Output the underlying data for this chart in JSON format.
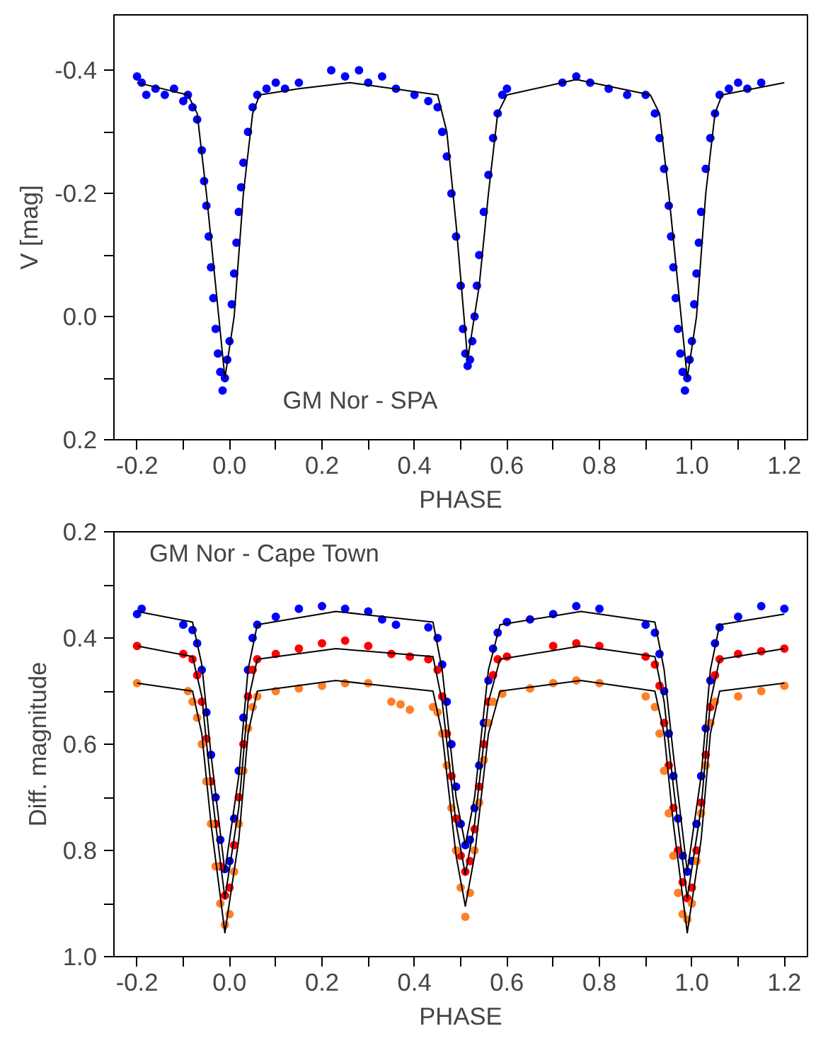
{
  "chart_data": [
    {
      "type": "scatter",
      "xlabel": "PHASE",
      "ylabel": "V [mag]",
      "annotations": [
        "GM Nor - SPA"
      ],
      "xlim": [
        -0.25,
        1.25
      ],
      "ylim": [
        0.2,
        -0.49
      ],
      "xticks": [
        {
          "value": -0.2,
          "label": "-0.2"
        },
        {
          "value": -0.1,
          "label": null
        },
        {
          "value": 0,
          "label": "0.0"
        },
        {
          "value": 0.1,
          "label": null
        },
        {
          "value": 0.2,
          "label": "0.2"
        },
        {
          "value": 0.3,
          "label": null
        },
        {
          "value": 0.4,
          "label": "0.4"
        },
        {
          "value": 0.5,
          "label": null
        },
        {
          "value": 0.6,
          "label": "0.6"
        },
        {
          "value": 0.7,
          "label": null
        },
        {
          "value": 0.8,
          "label": "0.8"
        },
        {
          "value": 0.9,
          "label": null
        },
        {
          "value": 1,
          "label": "1.0"
        },
        {
          "value": 1.1,
          "label": null
        },
        {
          "value": 1.2,
          "label": "1.2"
        }
      ],
      "yticks": [
        {
          "value": -0.4,
          "label": "-0.4"
        },
        {
          "value": -0.3,
          "label": null
        },
        {
          "value": -0.2,
          "label": "-0.2"
        },
        {
          "value": -0.1,
          "label": null
        },
        {
          "value": 0,
          "label": "0.0"
        },
        {
          "value": 0.1,
          "label": null
        },
        {
          "value": 0.2,
          "label": "0.2"
        }
      ],
      "grid": false,
      "line_style": "solid",
      "series": [
        {
          "marker": "circle",
          "color": "#0000ff",
          "x": [
            -0.2,
            -0.19,
            -0.18,
            -0.16,
            -0.14,
            -0.12,
            -0.1,
            -0.09,
            -0.08,
            -0.07,
            -0.06,
            -0.055,
            -0.05,
            -0.045,
            -0.04,
            -0.035,
            -0.03,
            -0.025,
            -0.02,
            -0.015,
            -0.01,
            -0.005,
            0.0,
            0.005,
            0.01,
            0.015,
            0.02,
            0.025,
            0.03,
            0.04,
            0.05,
            0.06,
            0.08,
            0.1,
            0.12,
            0.15,
            0.22,
            0.25,
            0.28,
            0.3,
            0.33,
            0.36,
            0.4,
            0.43,
            0.45,
            0.46,
            0.47,
            0.48,
            0.49,
            0.5,
            0.505,
            0.51,
            0.515,
            0.52,
            0.525,
            0.53,
            0.535,
            0.54,
            0.55,
            0.56,
            0.57,
            0.58,
            0.59,
            0.6,
            0.72,
            0.75,
            0.78,
            0.82,
            0.86,
            0.9,
            0.92,
            0.93,
            0.94,
            0.95,
            0.955,
            0.96,
            0.965,
            0.97,
            0.975,
            0.98,
            0.985,
            0.99,
            0.995,
            1.0,
            1.005,
            1.01,
            1.015,
            1.02,
            1.03,
            1.04,
            1.05,
            1.06,
            1.08,
            1.1,
            1.12,
            1.15
          ],
          "values": [
            -0.39,
            -0.38,
            -0.36,
            -0.37,
            -0.36,
            -0.37,
            -0.35,
            -0.36,
            -0.34,
            -0.32,
            -0.27,
            -0.22,
            -0.18,
            -0.13,
            -0.08,
            -0.03,
            0.02,
            0.06,
            0.09,
            0.12,
            0.1,
            0.07,
            0.04,
            -0.02,
            -0.07,
            -0.12,
            -0.17,
            -0.21,
            -0.25,
            -0.3,
            -0.34,
            -0.36,
            -0.37,
            -0.38,
            -0.37,
            -0.38,
            -0.4,
            -0.39,
            -0.4,
            -0.38,
            -0.39,
            -0.37,
            -0.36,
            -0.35,
            -0.34,
            -0.3,
            -0.26,
            -0.2,
            -0.13,
            -0.05,
            0.02,
            0.06,
            0.08,
            0.07,
            0.04,
            0.0,
            -0.05,
            -0.1,
            -0.17,
            -0.23,
            -0.29,
            -0.33,
            -0.36,
            -0.37,
            -0.38,
            -0.39,
            -0.38,
            -0.37,
            -0.36,
            -0.36,
            -0.33,
            -0.29,
            -0.24,
            -0.18,
            -0.13,
            -0.08,
            -0.03,
            0.02,
            0.06,
            0.09,
            0.12,
            0.1,
            0.07,
            0.04,
            -0.02,
            -0.07,
            -0.12,
            -0.17,
            -0.24,
            -0.29,
            -0.33,
            -0.36,
            -0.37,
            -0.38,
            -0.37,
            -0.38
          ]
        },
        {
          "type": "line",
          "marker": "none",
          "color": "#000000",
          "x": [
            -0.2,
            -0.09,
            -0.07,
            -0.05,
            -0.03,
            -0.01,
            0.01,
            0.03,
            0.05,
            0.065,
            0.15,
            0.26,
            0.45,
            0.47,
            0.49,
            0.515,
            0.54,
            0.56,
            0.58,
            0.6,
            0.75,
            0.91,
            0.93,
            0.95,
            0.97,
            0.99,
            1.01,
            1.03,
            1.05,
            1.065,
            1.2
          ],
          "values": [
            -0.38,
            -0.36,
            -0.33,
            -0.2,
            -0.05,
            0.1,
            0.0,
            -0.2,
            -0.33,
            -0.36,
            -0.37,
            -0.38,
            -0.36,
            -0.3,
            -0.15,
            0.07,
            -0.05,
            -0.2,
            -0.33,
            -0.36,
            -0.385,
            -0.36,
            -0.33,
            -0.2,
            -0.05,
            0.1,
            0.0,
            -0.2,
            -0.33,
            -0.36,
            -0.38
          ]
        }
      ]
    },
    {
      "type": "scatter",
      "xlabel": "PHASE",
      "ylabel": "Diff. magnitude",
      "annotations": [
        "GM Nor - Cape Town"
      ],
      "xlim": [
        -0.25,
        1.25
      ],
      "ylim": [
        1.0,
        0.2
      ],
      "xticks": [
        {
          "value": -0.2,
          "label": "-0.2"
        },
        {
          "value": -0.1,
          "label": null
        },
        {
          "value": 0,
          "label": "0.0"
        },
        {
          "value": 0.1,
          "label": null
        },
        {
          "value": 0.2,
          "label": "0.2"
        },
        {
          "value": 0.3,
          "label": null
        },
        {
          "value": 0.4,
          "label": "0.4"
        },
        {
          "value": 0.5,
          "label": null
        },
        {
          "value": 0.6,
          "label": "0.6"
        },
        {
          "value": 0.7,
          "label": null
        },
        {
          "value": 0.8,
          "label": "0.8"
        },
        {
          "value": 0.9,
          "label": null
        },
        {
          "value": 1,
          "label": "1.0"
        },
        {
          "value": 1.1,
          "label": null
        },
        {
          "value": 1.2,
          "label": "1.2"
        }
      ],
      "yticks": [
        {
          "value": 0.2,
          "label": "0.2"
        },
        {
          "value": 0.3,
          "label": null
        },
        {
          "value": 0.4,
          "label": "0.4"
        },
        {
          "value": 0.5,
          "label": null
        },
        {
          "value": 0.6,
          "label": "0.6"
        },
        {
          "value": 0.7,
          "label": null
        },
        {
          "value": 0.8,
          "label": "0.8"
        },
        {
          "value": 0.9,
          "label": null
        },
        {
          "value": 1,
          "label": "1.0"
        }
      ],
      "grid": false,
      "line_style": "solid",
      "series": [
        {
          "marker": "circle",
          "color": "#0000ff",
          "x": [
            -0.2,
            -0.19,
            -0.1,
            -0.08,
            -0.07,
            -0.06,
            -0.05,
            -0.04,
            -0.03,
            -0.02,
            -0.01,
            0.0,
            0.01,
            0.02,
            0.03,
            0.04,
            0.05,
            0.06,
            0.1,
            0.15,
            0.2,
            0.25,
            0.3,
            0.33,
            0.36,
            0.43,
            0.45,
            0.46,
            0.47,
            0.48,
            0.49,
            0.5,
            0.51,
            0.52,
            0.53,
            0.54,
            0.55,
            0.56,
            0.57,
            0.58,
            0.6,
            0.65,
            0.7,
            0.75,
            0.8,
            0.9,
            0.92,
            0.93,
            0.94,
            0.95,
            0.96,
            0.97,
            0.98,
            0.99,
            1.0,
            1.01,
            1.02,
            1.03,
            1.04,
            1.05,
            1.06,
            1.1,
            1.15,
            1.2
          ],
          "values": [
            0.355,
            0.345,
            0.375,
            0.385,
            0.41,
            0.46,
            0.54,
            0.62,
            0.7,
            0.78,
            0.835,
            0.82,
            0.74,
            0.65,
            0.55,
            0.46,
            0.4,
            0.375,
            0.36,
            0.345,
            0.34,
            0.345,
            0.35,
            0.365,
            0.375,
            0.38,
            0.4,
            0.45,
            0.52,
            0.6,
            0.68,
            0.75,
            0.79,
            0.78,
            0.72,
            0.64,
            0.56,
            0.48,
            0.42,
            0.39,
            0.37,
            0.365,
            0.355,
            0.34,
            0.345,
            0.375,
            0.39,
            0.43,
            0.5,
            0.58,
            0.66,
            0.74,
            0.81,
            0.84,
            0.82,
            0.75,
            0.66,
            0.57,
            0.48,
            0.41,
            0.38,
            0.36,
            0.34,
            0.345
          ]
        },
        {
          "marker": "circle",
          "color": "#ff0000",
          "x": [
            -0.2,
            -0.1,
            -0.08,
            -0.07,
            -0.06,
            -0.05,
            -0.04,
            -0.03,
            -0.02,
            -0.01,
            0.0,
            0.01,
            0.02,
            0.03,
            0.04,
            0.05,
            0.06,
            0.1,
            0.15,
            0.2,
            0.25,
            0.3,
            0.35,
            0.39,
            0.43,
            0.45,
            0.46,
            0.47,
            0.48,
            0.49,
            0.5,
            0.51,
            0.52,
            0.53,
            0.54,
            0.55,
            0.56,
            0.57,
            0.58,
            0.6,
            0.7,
            0.75,
            0.8,
            0.9,
            0.92,
            0.93,
            0.94,
            0.95,
            0.96,
            0.97,
            0.98,
            0.99,
            1.0,
            1.01,
            1.02,
            1.03,
            1.04,
            1.05,
            1.06,
            1.1,
            1.15,
            1.2
          ],
          "values": [
            0.415,
            0.43,
            0.44,
            0.47,
            0.52,
            0.59,
            0.67,
            0.75,
            0.83,
            0.885,
            0.87,
            0.79,
            0.7,
            0.6,
            0.51,
            0.46,
            0.44,
            0.43,
            0.42,
            0.41,
            0.405,
            0.415,
            0.43,
            0.435,
            0.44,
            0.46,
            0.51,
            0.58,
            0.66,
            0.74,
            0.81,
            0.84,
            0.82,
            0.76,
            0.68,
            0.6,
            0.52,
            0.47,
            0.44,
            0.435,
            0.415,
            0.41,
            0.415,
            0.435,
            0.45,
            0.49,
            0.56,
            0.64,
            0.72,
            0.8,
            0.86,
            0.89,
            0.87,
            0.8,
            0.71,
            0.62,
            0.53,
            0.47,
            0.44,
            0.43,
            0.425,
            0.42
          ]
        },
        {
          "marker": "circle",
          "color": "#ff7f27",
          "x": [
            -0.2,
            -0.09,
            -0.08,
            -0.07,
            -0.06,
            -0.05,
            -0.04,
            -0.03,
            -0.02,
            -0.01,
            0.0,
            0.01,
            0.02,
            0.03,
            0.04,
            0.05,
            0.06,
            0.1,
            0.15,
            0.2,
            0.25,
            0.3,
            0.35,
            0.37,
            0.39,
            0.44,
            0.45,
            0.46,
            0.47,
            0.48,
            0.49,
            0.5,
            0.51,
            0.52,
            0.53,
            0.54,
            0.55,
            0.56,
            0.57,
            0.59,
            0.65,
            0.7,
            0.75,
            0.8,
            0.9,
            0.92,
            0.93,
            0.94,
            0.95,
            0.96,
            0.97,
            0.98,
            0.99,
            1.0,
            1.01,
            1.02,
            1.03,
            1.04,
            1.05,
            1.1,
            1.15,
            1.2
          ],
          "values": [
            0.485,
            0.5,
            0.52,
            0.55,
            0.6,
            0.67,
            0.75,
            0.83,
            0.9,
            0.94,
            0.92,
            0.84,
            0.75,
            0.65,
            0.57,
            0.53,
            0.51,
            0.5,
            0.495,
            0.49,
            0.485,
            0.485,
            0.52,
            0.525,
            0.535,
            0.53,
            0.54,
            0.58,
            0.64,
            0.72,
            0.8,
            0.87,
            0.925,
            0.88,
            0.8,
            0.71,
            0.63,
            0.56,
            0.52,
            0.505,
            0.495,
            0.485,
            0.48,
            0.485,
            0.51,
            0.53,
            0.58,
            0.65,
            0.73,
            0.81,
            0.88,
            0.92,
            0.93,
            0.9,
            0.82,
            0.73,
            0.64,
            0.56,
            0.52,
            0.51,
            0.5,
            0.49
          ]
        },
        {
          "type": "line",
          "color": "#000000",
          "x": [
            -0.2,
            -0.08,
            -0.06,
            -0.04,
            -0.01,
            0.02,
            0.04,
            0.06,
            0.23,
            0.44,
            0.46,
            0.49,
            0.51,
            0.53,
            0.56,
            0.585,
            0.76,
            0.92,
            0.94,
            0.96,
            0.99,
            1.02,
            1.04,
            1.06,
            1.2
          ],
          "marker": "none",
          "values": [
            0.35,
            0.37,
            0.45,
            0.62,
            0.84,
            0.66,
            0.46,
            0.375,
            0.35,
            0.37,
            0.46,
            0.7,
            0.79,
            0.7,
            0.46,
            0.375,
            0.35,
            0.37,
            0.46,
            0.62,
            0.84,
            0.66,
            0.46,
            0.375,
            0.355
          ]
        },
        {
          "type": "line",
          "color": "#000000",
          "x": [
            -0.2,
            -0.08,
            -0.06,
            -0.04,
            -0.01,
            0.02,
            0.04,
            0.06,
            0.23,
            0.44,
            0.46,
            0.49,
            0.51,
            0.53,
            0.56,
            0.585,
            0.76,
            0.92,
            0.94,
            0.96,
            0.99,
            1.02,
            1.04,
            1.06,
            1.2
          ],
          "marker": "none",
          "values": [
            0.415,
            0.435,
            0.51,
            0.68,
            0.89,
            0.72,
            0.52,
            0.44,
            0.42,
            0.435,
            0.52,
            0.75,
            0.845,
            0.75,
            0.52,
            0.44,
            0.415,
            0.435,
            0.52,
            0.68,
            0.89,
            0.72,
            0.52,
            0.44,
            0.42
          ]
        },
        {
          "type": "line",
          "color": "#000000",
          "x": [
            -0.2,
            -0.08,
            -0.06,
            -0.04,
            -0.01,
            0.02,
            0.04,
            0.06,
            0.23,
            0.44,
            0.46,
            0.49,
            0.51,
            0.53,
            0.56,
            0.585,
            0.76,
            0.92,
            0.94,
            0.96,
            0.99,
            1.02,
            1.04,
            1.06,
            1.2
          ],
          "marker": "none",
          "values": [
            0.485,
            0.5,
            0.58,
            0.75,
            0.955,
            0.78,
            0.58,
            0.5,
            0.48,
            0.5,
            0.58,
            0.81,
            0.905,
            0.81,
            0.58,
            0.5,
            0.48,
            0.5,
            0.58,
            0.75,
            0.955,
            0.78,
            0.58,
            0.5,
            0.485
          ]
        }
      ]
    }
  ]
}
